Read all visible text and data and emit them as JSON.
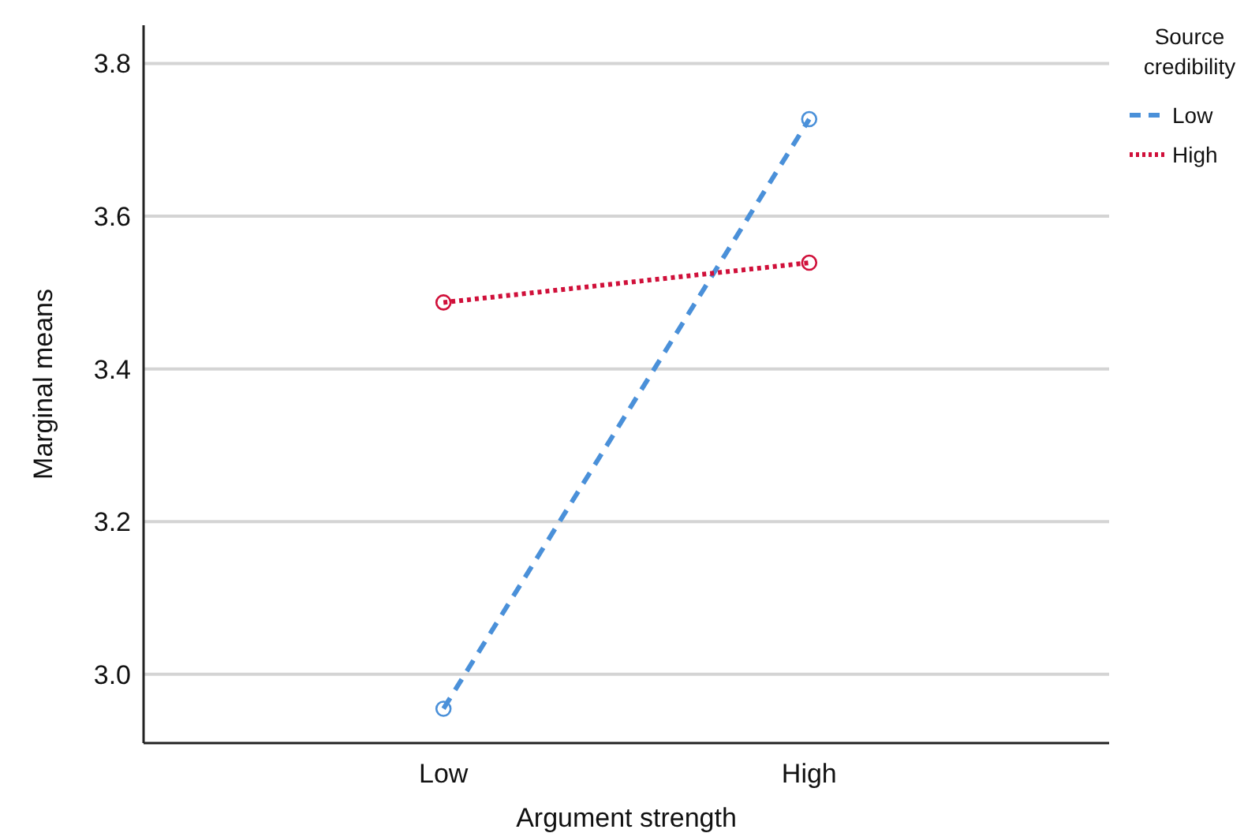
{
  "chart_data": {
    "type": "line",
    "xlabel": "Argument strength",
    "ylabel": "Marginal means",
    "legend_title": "Source credibility",
    "categories": [
      "Low",
      "High"
    ],
    "series": [
      {
        "name": "Low",
        "color": "#4a90d9",
        "values": [
          2.955,
          3.727
        ],
        "line_style": "dashed"
      },
      {
        "name": "High",
        "color": "#d0103a",
        "values": [
          3.487,
          3.539
        ],
        "line_style": "dotted"
      }
    ],
    "ylim": [
      2.91,
      3.85
    ],
    "yticks": [
      {
        "value": 3.0,
        "label": "3.0"
      },
      {
        "value": 3.2,
        "label": "3.2"
      },
      {
        "value": 3.4,
        "label": "3.4"
      },
      {
        "value": 3.6,
        "label": "3.6"
      },
      {
        "value": 3.8,
        "label": "3.8"
      }
    ],
    "grid": "y",
    "legend": "top right",
    "marker": "circle"
  }
}
